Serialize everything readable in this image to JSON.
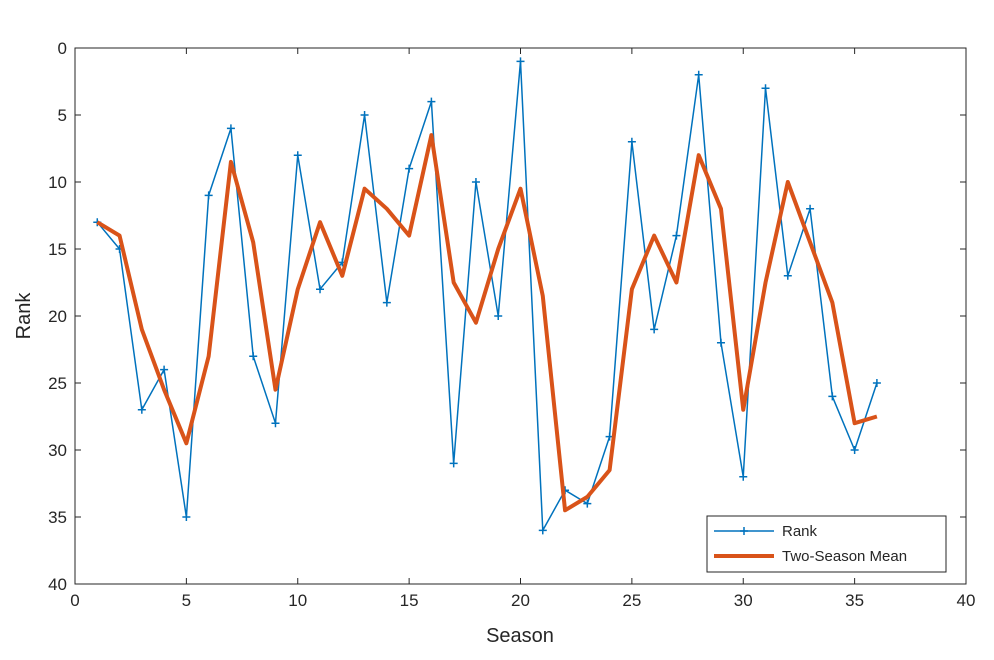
{
  "chart_data": {
    "type": "line",
    "title": "",
    "xlabel": "Season",
    "ylabel": "Rank",
    "xlim": [
      0,
      40
    ],
    "ylim": [
      0,
      40
    ],
    "y_reversed": true,
    "grid": false,
    "legend_placement": "bottom-right",
    "x_ticks": [
      0,
      5,
      10,
      15,
      20,
      25,
      30,
      35,
      40
    ],
    "y_ticks": [
      0,
      5,
      10,
      15,
      20,
      25,
      30,
      35,
      40
    ],
    "x": [
      1,
      2,
      3,
      4,
      5,
      6,
      7,
      8,
      9,
      10,
      11,
      12,
      13,
      14,
      15,
      16,
      17,
      18,
      19,
      20,
      21,
      22,
      23,
      24,
      25,
      26,
      27,
      28,
      29,
      30,
      31,
      32,
      33,
      34,
      35,
      36
    ],
    "series": [
      {
        "name": "Rank",
        "color": "#0072BD",
        "marker": "+",
        "values": [
          13,
          15,
          27,
          24,
          35,
          11,
          6,
          23,
          28,
          8,
          18,
          16,
          5,
          19,
          9,
          4,
          31,
          10,
          20,
          1,
          36,
          33,
          34,
          29,
          7,
          21,
          14,
          2,
          22,
          32,
          3,
          17,
          12,
          26,
          30,
          25
        ]
      },
      {
        "name": "Two-Season Mean",
        "color": "#D95319",
        "marker": "none",
        "values": [
          13,
          14,
          21,
          25.5,
          29.5,
          23,
          8.5,
          14.5,
          25.5,
          18,
          13,
          17,
          10.5,
          12,
          14,
          6.5,
          17.5,
          20.5,
          15,
          10.5,
          18.5,
          34.5,
          33.5,
          31.5,
          18,
          14,
          17.5,
          8,
          12,
          27,
          17.5,
          10,
          14.5,
          19,
          28,
          27.5
        ]
      }
    ]
  }
}
